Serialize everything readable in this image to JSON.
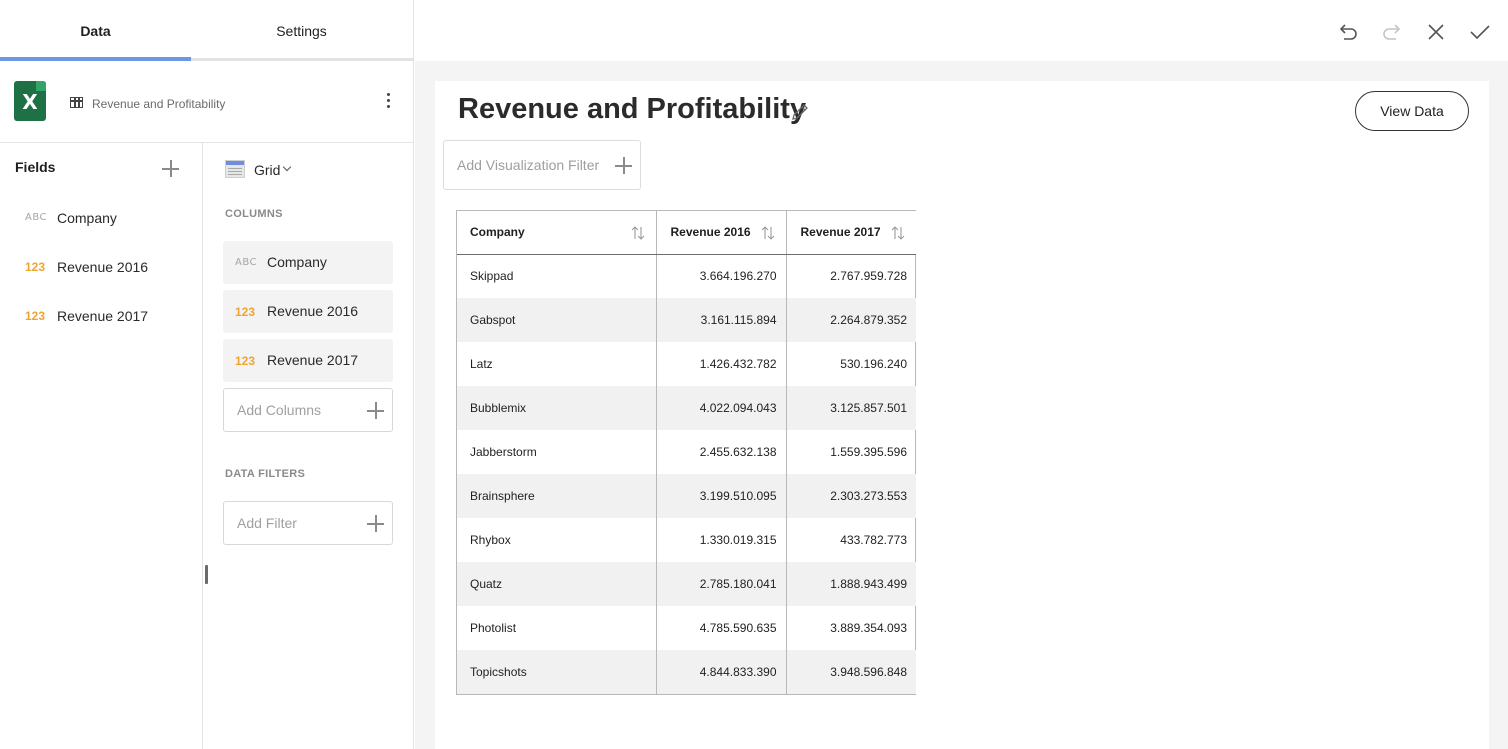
{
  "tabs": {
    "data": "Data",
    "settings": "Settings"
  },
  "source": {
    "name": "Revenue and Profitability",
    "icon": "excel-icon",
    "icon_letter": "X"
  },
  "fields": {
    "title": "Fields",
    "items": [
      {
        "type_label": "ABC",
        "type": "text",
        "label": "Company"
      },
      {
        "type_label": "123",
        "type": "number",
        "label": "Revenue 2016"
      },
      {
        "type_label": "123",
        "type": "number",
        "label": "Revenue 2017"
      }
    ]
  },
  "config": {
    "viz_type": "Grid",
    "columns_title": "COLUMNS",
    "columns": [
      {
        "type_label": "ABC",
        "label": "Company"
      },
      {
        "type_label": "123",
        "label": "Revenue 2016"
      },
      {
        "type_label": "123",
        "label": "Revenue 2017"
      }
    ],
    "add_columns": "Add Columns",
    "data_filters_title": "DATA FILTERS",
    "add_filter": "Add Filter"
  },
  "toolbar": {
    "icons": [
      "undo-icon",
      "redo-icon",
      "close-icon",
      "check-icon"
    ]
  },
  "viz": {
    "title": "Revenue and Profitability",
    "view_data": "View Data",
    "add_viz_filter": "Add Visualization Filter",
    "headers": [
      "Company",
      "Revenue 2016",
      "Revenue 2017"
    ],
    "rows": [
      [
        "Skippad",
        "3.664.196.270",
        "2.767.959.728"
      ],
      [
        "Gabspot",
        "3.161.115.894",
        "2.264.879.352"
      ],
      [
        "Latz",
        "1.426.432.782",
        "530.196.240"
      ],
      [
        "Bubblemix",
        "4.022.094.043",
        "3.125.857.501"
      ],
      [
        "Jabberstorm",
        "2.455.632.138",
        "1.559.395.596"
      ],
      [
        "Brainsphere",
        "3.199.510.095",
        "2.303.273.553"
      ],
      [
        "Rhybox",
        "1.330.019.315",
        "433.782.773"
      ],
      [
        "Quatz",
        "2.785.180.041",
        "1.888.943.499"
      ],
      [
        "Photolist",
        "4.785.590.635",
        "3.889.354.093"
      ],
      [
        "Topicshots",
        "4.844.833.390",
        "3.948.596.848"
      ]
    ]
  },
  "colors": {
    "accent": "#6e96e6",
    "number_type": "#f0a52f",
    "excel_green": "#1e7145"
  }
}
